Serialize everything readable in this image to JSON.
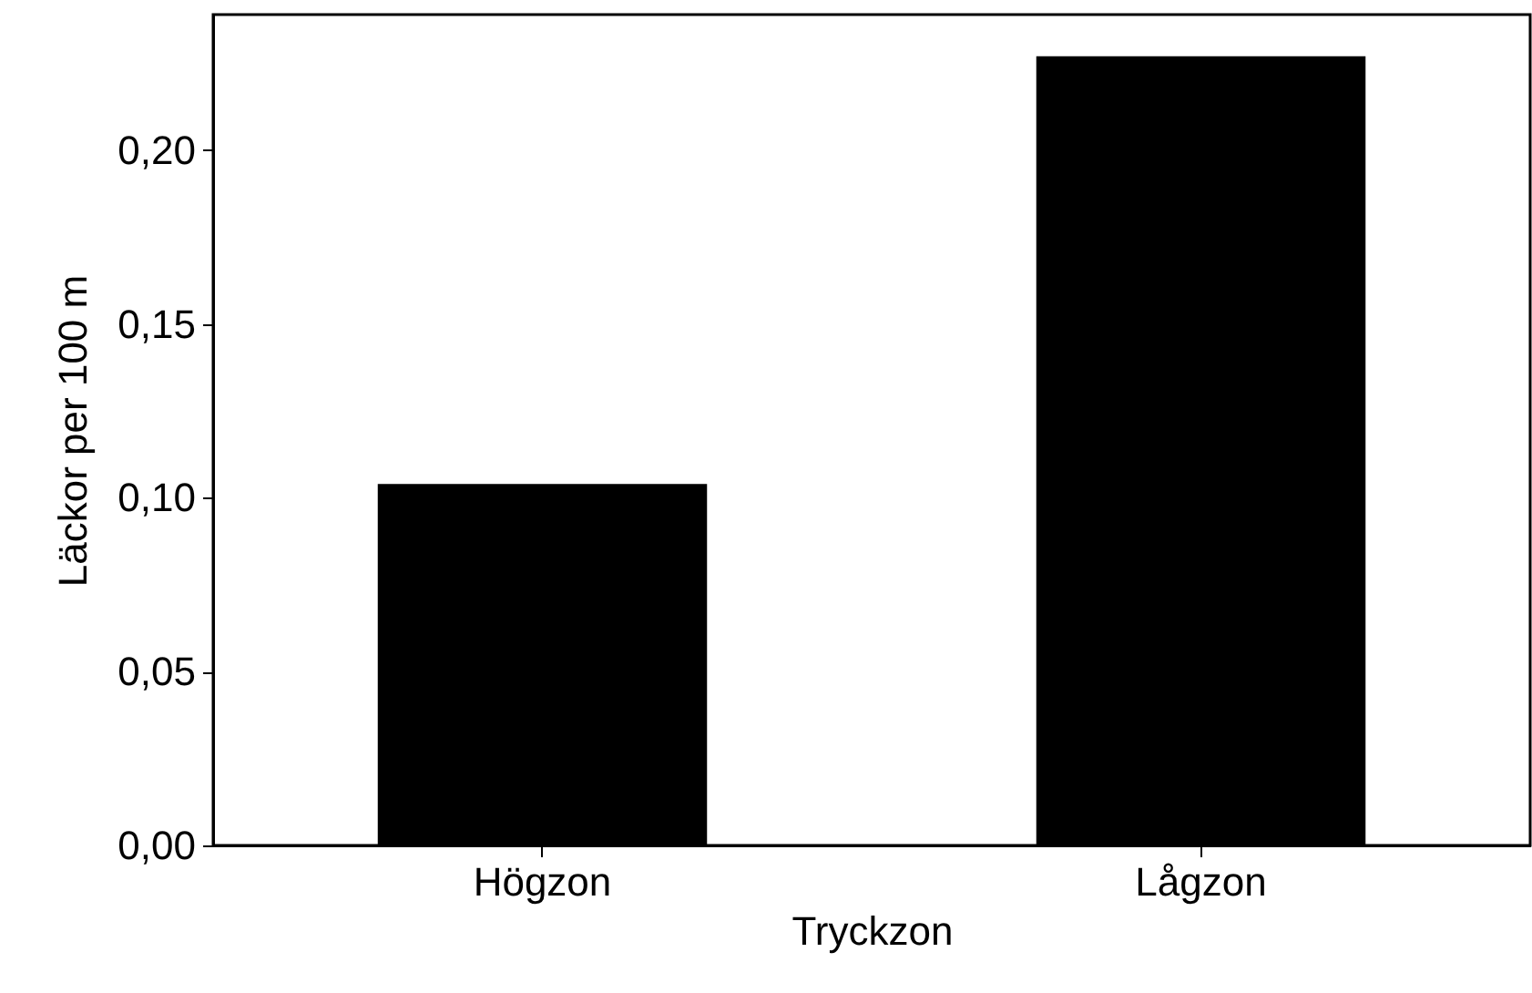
{
  "chart_data": {
    "type": "bar",
    "xlabel": "Tryckzon",
    "ylabel": "Läckor per 100 m",
    "categories": [
      "Högzon",
      "Lågzon"
    ],
    "values": [
      0.104,
      0.227
    ],
    "color": "#000000",
    "ylim": [
      0,
      0.239
    ],
    "yticks": [
      {
        "value": 0,
        "label": "0,00"
      },
      {
        "value": 0.05,
        "label": "0,05"
      },
      {
        "value": 0.1,
        "label": "0,10"
      },
      {
        "value": 0.15,
        "label": "0,15"
      },
      {
        "value": 0.2,
        "label": "0,20"
      }
    ],
    "grid": false
  }
}
